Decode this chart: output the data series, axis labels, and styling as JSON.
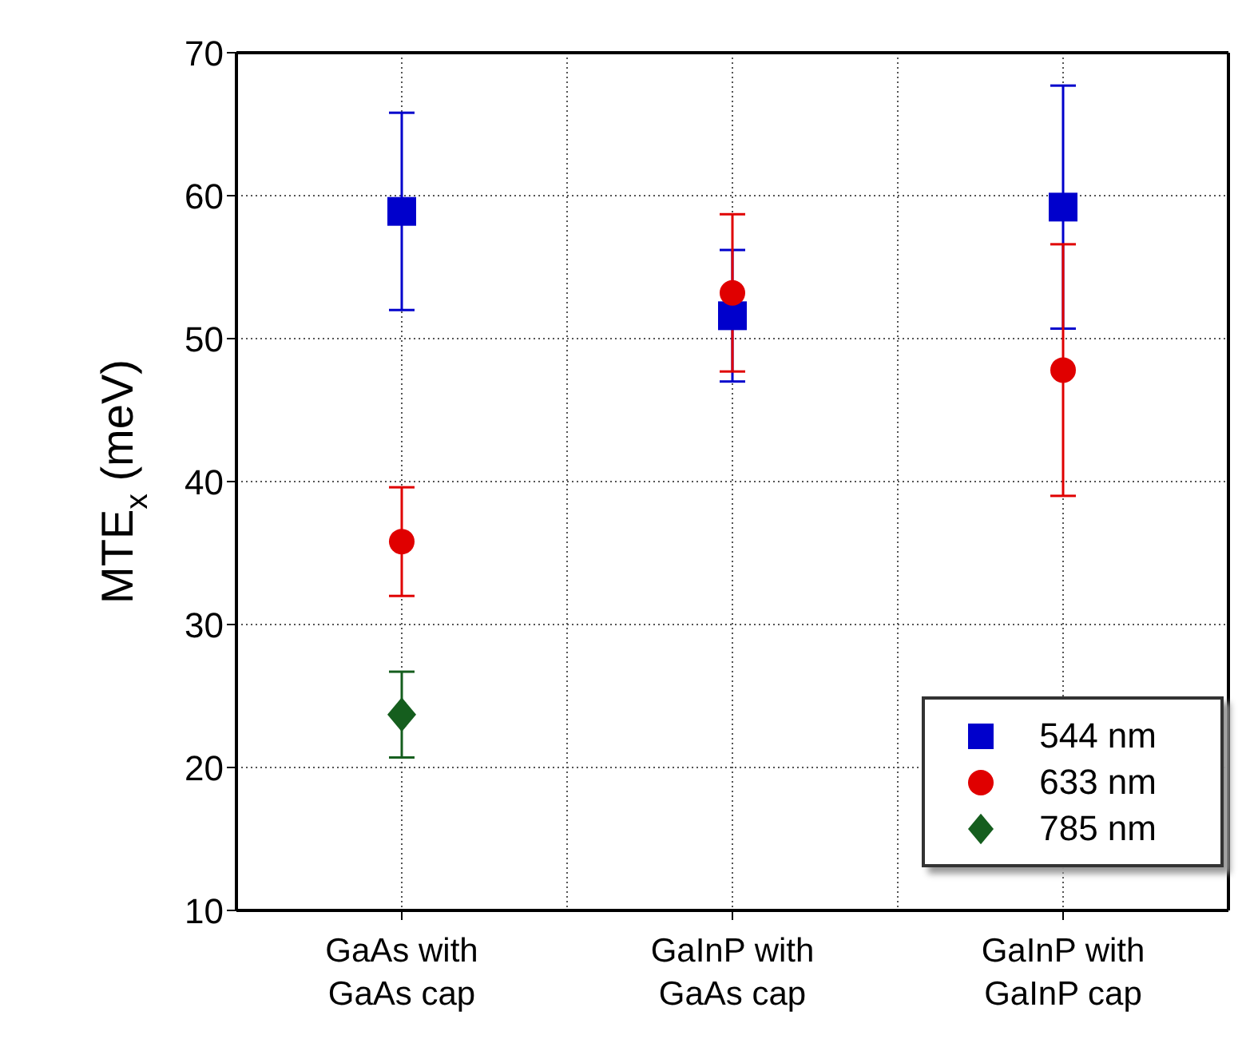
{
  "chart_data": {
    "type": "scatter",
    "ylabel": "MTE$_{x}$ (meV)",
    "categories": [
      "GaAs with\nGaAs cap",
      "GaInP with\nGaAs cap",
      "GaInP with\nGaInP cap"
    ],
    "series": [
      {
        "name": "544 nm",
        "color": "#0000cc",
        "marker": "square",
        "values": [
          58.9,
          51.6,
          59.2
        ],
        "errors": [
          6.9,
          4.6,
          8.5
        ]
      },
      {
        "name": "633 nm",
        "color": "#e00000",
        "marker": "circle",
        "values": [
          35.8,
          53.2,
          47.8
        ],
        "errors": [
          3.8,
          5.5,
          8.8
        ]
      },
      {
        "name": "785 nm",
        "color": "#155e1e",
        "marker": "diamond",
        "values": [
          23.7,
          null,
          null
        ],
        "errors": [
          3.0,
          null,
          null
        ]
      }
    ],
    "ylim": [
      10,
      70
    ],
    "yticks": [
      10,
      20,
      30,
      40,
      50,
      60,
      70
    ],
    "grid": true,
    "legend": "bottom right"
  }
}
